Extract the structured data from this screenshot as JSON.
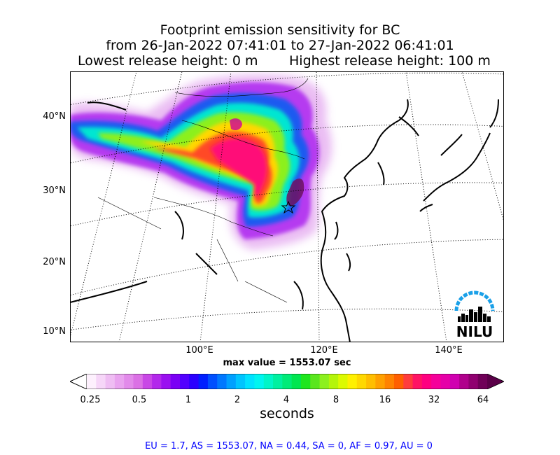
{
  "title": {
    "line1": "Footprint emission sensitivity for BC",
    "line2": "from 26-Jan-2022 07:41:01 to 27-Jan-2022 06:41:01",
    "lowest": "Lowest release height: 0 m",
    "highest": "Highest release height: 100 m"
  },
  "lat_labels": [
    "40°N",
    "30°N",
    "20°N",
    "10°N"
  ],
  "lon_labels": [
    "100°E",
    "120°E",
    "140°E"
  ],
  "max_value": "max value = 1553.07 sec",
  "colorbar": {
    "ticks": [
      "0.25",
      "0.5",
      "1",
      "2",
      "4",
      "8",
      "16",
      "32",
      "64"
    ],
    "units": "seconds",
    "colors": [
      "#fdf0fd",
      "#f6d6f8",
      "#efbdf3",
      "#e9a3ef",
      "#e28aea",
      "#db70e5",
      "#c947e6",
      "#b328eb",
      "#9a10f0",
      "#7b00f5",
      "#5200ff",
      "#2a00ff",
      "#0020ff",
      "#0050ff",
      "#0078ff",
      "#00a0ff",
      "#00c4ff",
      "#00e2ff",
      "#00f5f0",
      "#00f5c8",
      "#00f0a0",
      "#00eb78",
      "#00e650",
      "#1ee61e",
      "#5ae61e",
      "#8cf01e",
      "#b4f50a",
      "#dcfa00",
      "#fff000",
      "#ffd800",
      "#ffbe00",
      "#ffa000",
      "#ff8200",
      "#ff5f00",
      "#ff3c3c",
      "#ff1464",
      "#ff0080",
      "#f5009a",
      "#e600a8",
      "#d000b0",
      "#b0008c",
      "#900070",
      "#700058"
    ]
  },
  "nilu_logo": "NILU",
  "regions": "EU = 1.7,  AS = 1553.07,  NA = 0.44,  SA = 0,  AF = 0.97,  AU = 0"
}
